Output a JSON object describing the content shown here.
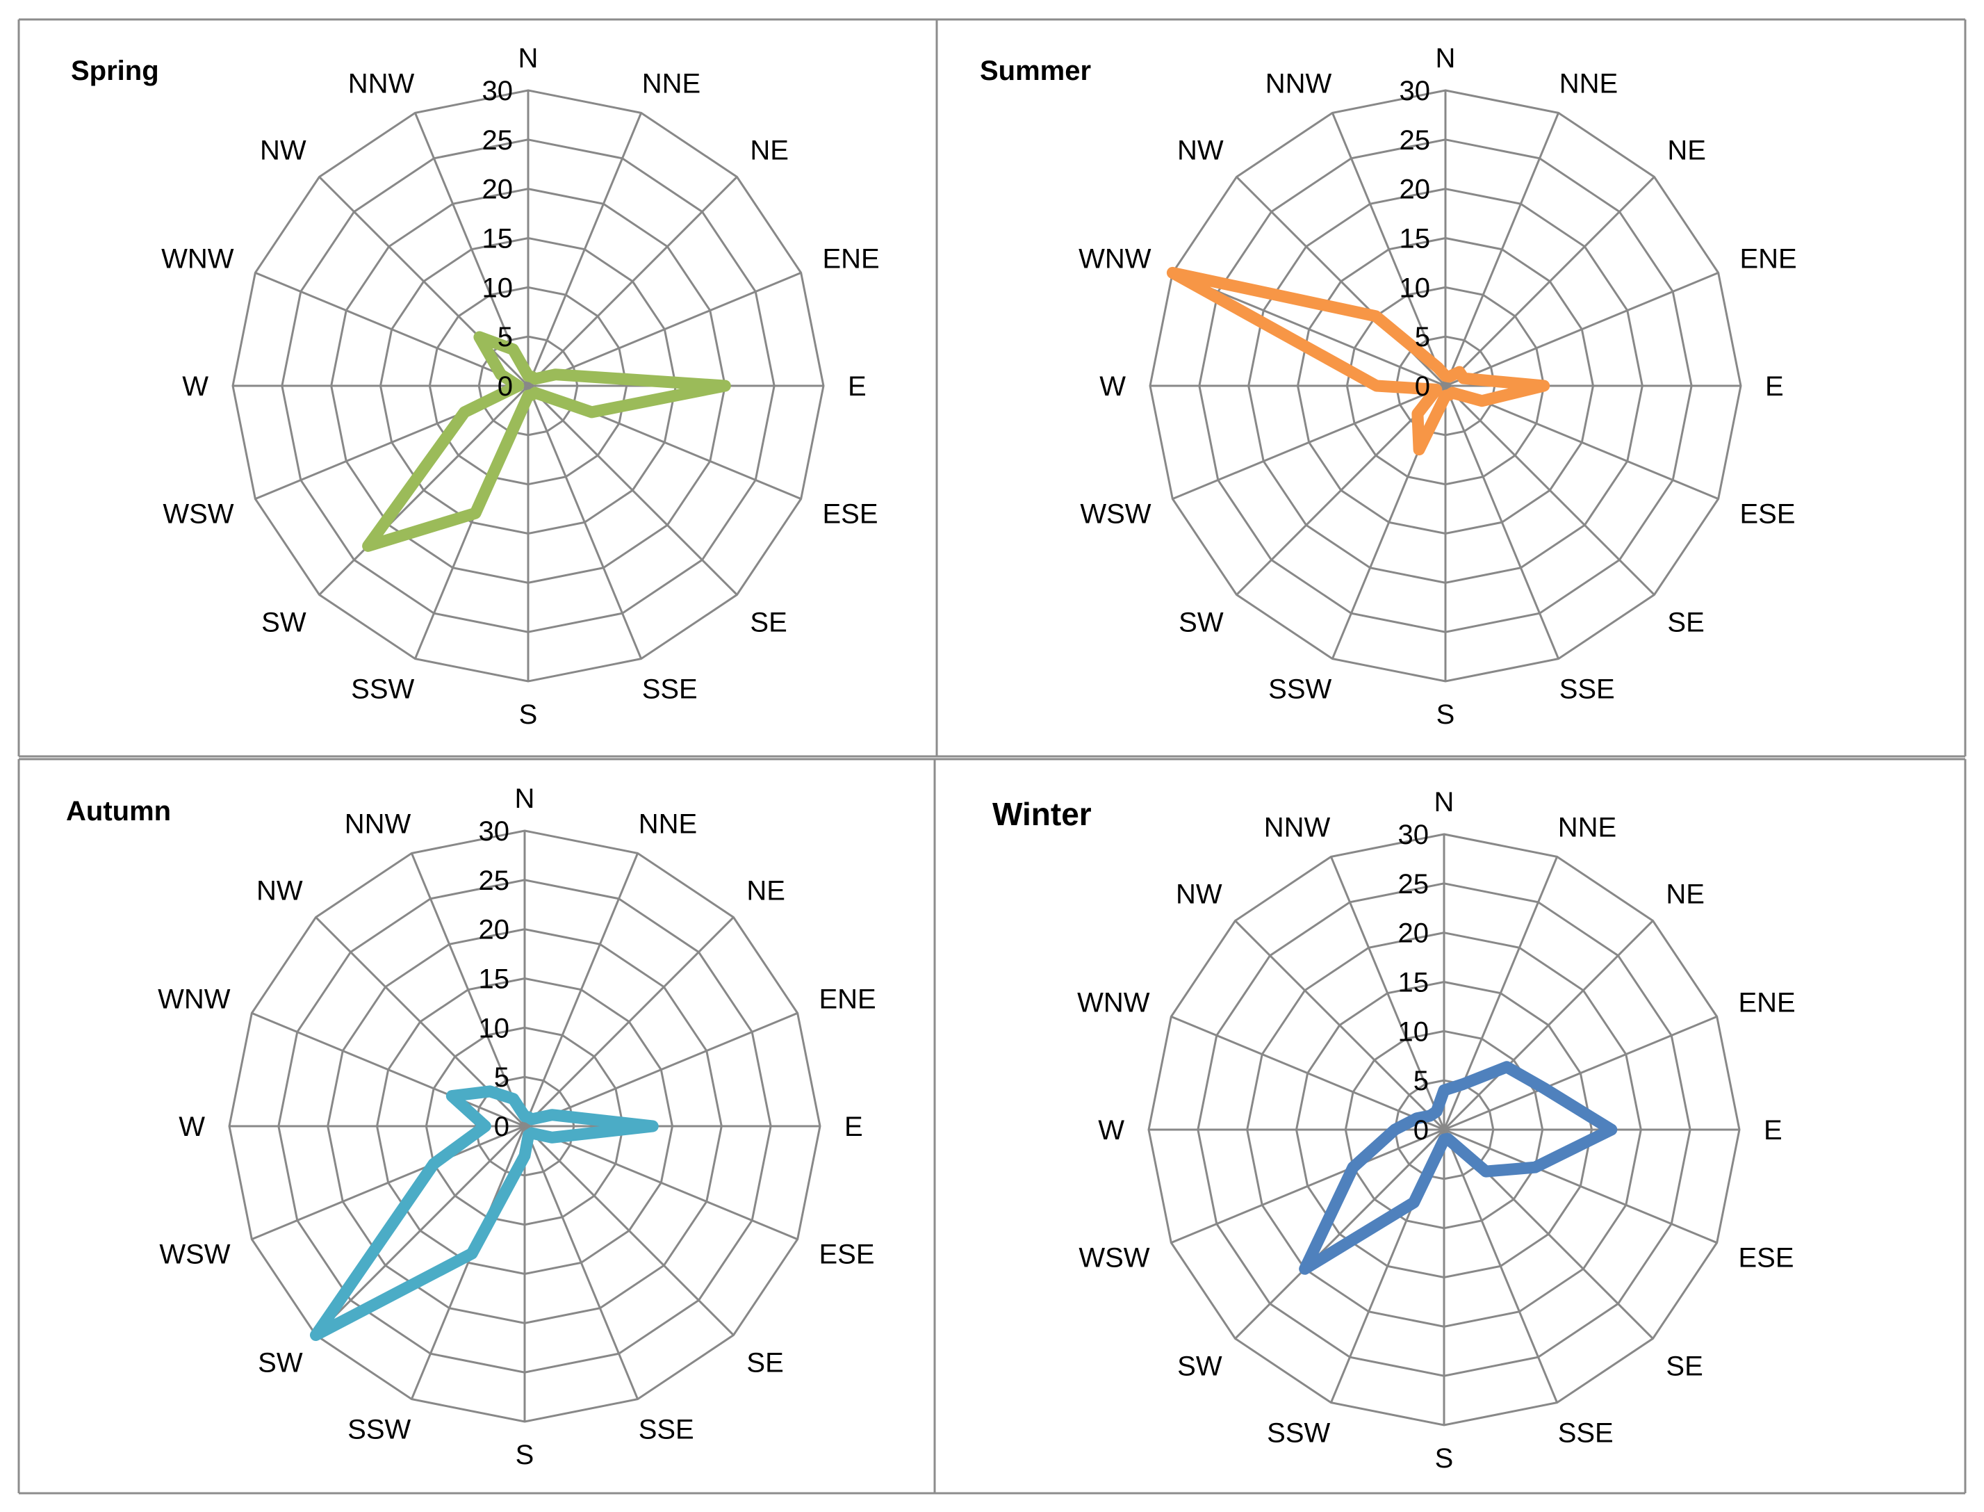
{
  "chart_data": [
    {
      "type": "radar",
      "title": "Spring",
      "categories": [
        "N",
        "NNE",
        "NE",
        "ENE",
        "E",
        "ESE",
        "SE",
        "SSE",
        "S",
        "SSW",
        "SW",
        "WSW",
        "W",
        "WNW",
        "NW",
        "NNW"
      ],
      "ticks": [
        "0",
        "5",
        "10",
        "15",
        "20",
        "25",
        "30"
      ],
      "rmax": 30,
      "color": "#9bbb59",
      "values": [
        1,
        1,
        1,
        3,
        20,
        7,
        1,
        1,
        1,
        14,
        23,
        7,
        1,
        3,
        7,
        4
      ]
    },
    {
      "type": "radar",
      "title": "Summer",
      "categories": [
        "N",
        "NNE",
        "NE",
        "ENE",
        "E",
        "ESE",
        "SE",
        "SSE",
        "S",
        "SSW",
        "SW",
        "WSW",
        "W",
        "WNW",
        "NW",
        "NNW"
      ],
      "ticks": [
        "0",
        "5",
        "10",
        "15",
        "20",
        "25",
        "30"
      ],
      "rmax": 30,
      "color": "#f79646",
      "values": [
        1,
        1,
        2,
        2,
        10,
        4,
        1,
        1,
        1,
        7,
        4,
        1,
        7,
        30,
        10,
        2
      ]
    },
    {
      "type": "radar",
      "title": "Autumn",
      "categories": [
        "N",
        "NNE",
        "NE",
        "ENE",
        "E",
        "ESE",
        "SE",
        "SSE",
        "S",
        "SSW",
        "SW",
        "WSW",
        "W",
        "WNW",
        "NW",
        "NNW"
      ],
      "ticks": [
        "0",
        "5",
        "10",
        "15",
        "20",
        "25",
        "30"
      ],
      "rmax": 30,
      "color": "#4bacc6",
      "values": [
        1,
        1,
        1,
        3,
        13,
        3,
        1,
        1,
        3,
        14,
        30,
        10,
        4,
        8,
        5,
        3
      ]
    },
    {
      "type": "radar",
      "title": "Winter",
      "categories": [
        "N",
        "NNE",
        "NE",
        "ENE",
        "E",
        "ESE",
        "SE",
        "SSE",
        "S",
        "SSW",
        "SW",
        "WSW",
        "W",
        "WNW",
        "NW",
        "NNW"
      ],
      "ticks": [
        "0",
        "5",
        "10",
        "15",
        "20",
        "25",
        "30"
      ],
      "rmax": 30,
      "color": "#4f81bd",
      "values": [
        4,
        5,
        9,
        11,
        17,
        10,
        6,
        1,
        1,
        8,
        20,
        10,
        5,
        3,
        2,
        2
      ]
    }
  ]
}
